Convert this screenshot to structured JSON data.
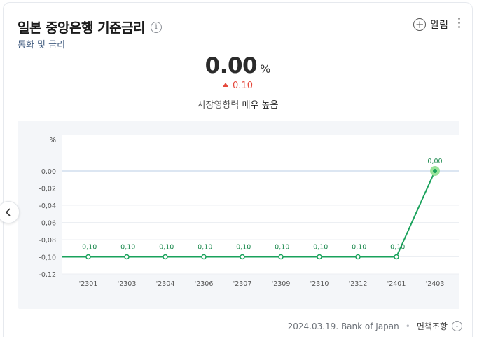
{
  "header": {
    "title": "일본 중앙은행 기준금리",
    "subtitle": "통화 및 금리",
    "alarm_label": "알림"
  },
  "summary": {
    "value": "0.00",
    "unit": "%",
    "change": "0.10",
    "impact_prefix": "시장영향력",
    "impact_level": "매우 높음"
  },
  "footer": {
    "source": "2024.03.19. Bank of Japan",
    "disclaimer": "면책조항"
  },
  "icons": {
    "info": "info-icon",
    "add": "plus-circle-icon",
    "more": "more-vertical-icon",
    "nav": "chevron-left-icon"
  },
  "colors": {
    "line": "#1aa25c",
    "last_point_halo": "#9ae39a",
    "change_up": "#e5493c",
    "zero_line": "#b8cde6"
  },
  "chart_data": {
    "type": "line",
    "ylabel": "%",
    "ylim": [
      -0.12,
      0.0
    ],
    "yticks": [
      "0,00",
      "-0,02",
      "-0,04",
      "-0,06",
      "-0,08",
      "-0,10",
      "-0,12"
    ],
    "ytick_values": [
      0.0,
      -0.02,
      -0.04,
      -0.06,
      -0.08,
      -0.1,
      -0.12
    ],
    "categories": [
      "'2301",
      "'2303",
      "'2304",
      "'2306",
      "'2307",
      "'2309",
      "'2310",
      "'2312",
      "'2401",
      "'2403"
    ],
    "values": [
      -0.1,
      -0.1,
      -0.1,
      -0.1,
      -0.1,
      -0.1,
      -0.1,
      -0.1,
      -0.1,
      0.0
    ],
    "data_labels": [
      "-0,10",
      "-0,10",
      "-0,10",
      "-0,10",
      "-0,10",
      "-0,10",
      "-0,10",
      "-0,10",
      "-0,10",
      "0,00"
    ],
    "grid": true
  }
}
